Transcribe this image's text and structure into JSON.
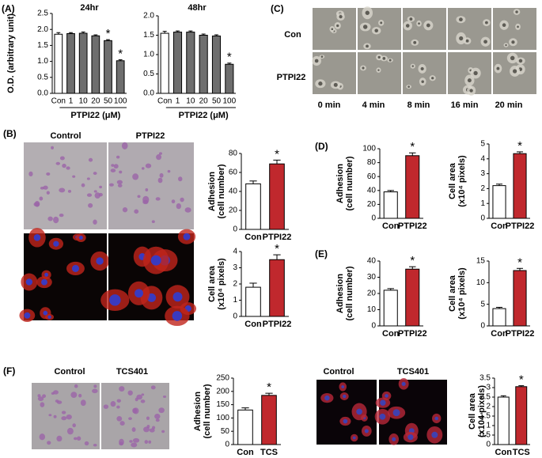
{
  "panel_labels": [
    "(A)",
    "(B)",
    "(C)",
    "(D)",
    "(E)",
    "(F)"
  ],
  "images": {
    "C": {
      "rows": [
        "Con",
        "PTPI22"
      ],
      "times": [
        "0 min",
        "4 min",
        "8 min",
        "16 min",
        "20 min"
      ]
    },
    "B": [
      "Control",
      "PTPI22"
    ],
    "F_left": [
      "Control",
      "TCS401"
    ],
    "F_right": [
      "Control",
      "TCS401"
    ]
  },
  "chart_data": [
    {
      "type": "bar",
      "title": "24hr",
      "ylabel": [
        "O.D. (arbitrary unit)"
      ],
      "xlabel": "PTPI22 (μM)",
      "categories": [
        "Con",
        "1",
        "10",
        "20",
        "50",
        "100"
      ],
      "values": [
        1.85,
        1.87,
        1.88,
        1.8,
        1.65,
        1.02
      ],
      "errors": [
        0.05,
        0.03,
        0.04,
        0.03,
        0.03,
        0.03
      ],
      "colors": [
        "#ffffff",
        "#6e6e6e",
        "#6e6e6e",
        "#6e6e6e",
        "#6e6e6e",
        "#6e6e6e"
      ],
      "significance": [
        null,
        null,
        null,
        null,
        "*",
        "*"
      ],
      "ylim": [
        0,
        2.5
      ],
      "yticks": [
        {
          "value": 0,
          "label": "0.0"
        },
        0.5,
        {
          "value": 1,
          "label": "1.0"
        },
        1.5,
        {
          "value": 2,
          "label": "2.0"
        },
        2.5
      ]
    },
    {
      "type": "bar",
      "title": "48hr",
      "xlabel": "PTPI22 (μM)",
      "categories": [
        "Con",
        "1",
        "10",
        "20",
        "50",
        "100"
      ],
      "values": [
        1.55,
        1.58,
        1.58,
        1.5,
        1.48,
        0.75
      ],
      "errors": [
        0.05,
        0.03,
        0.03,
        0.03,
        0.03,
        0.03
      ],
      "colors": [
        "#ffffff",
        "#6e6e6e",
        "#6e6e6e",
        "#6e6e6e",
        "#6e6e6e",
        "#6e6e6e"
      ],
      "significance": [
        null,
        null,
        null,
        null,
        null,
        "*"
      ],
      "ylim": [
        0,
        2
      ],
      "yticks": [
        {
          "value": 0,
          "label": "0.0"
        },
        0.5,
        {
          "value": 1,
          "label": "1.0"
        },
        1.5,
        {
          "value": 2,
          "label": "2.0"
        }
      ]
    },
    {
      "type": "bar",
      "ylabel": [
        "Adhesion",
        "(cell number)"
      ],
      "categories": [
        "Con",
        "PTPI22"
      ],
      "values": [
        48,
        69
      ],
      "errors": [
        3,
        4
      ],
      "colors": [
        "#ffffff",
        "#c0282d"
      ],
      "significance": [
        null,
        "*"
      ],
      "ylim": [
        0,
        80
      ],
      "yticks": [
        0,
        20,
        40,
        60,
        80
      ]
    },
    {
      "type": "bar",
      "ylabel": [
        "Cell area",
        "(x10⁴ pixels)"
      ],
      "categories": [
        "Con",
        "PTPI22"
      ],
      "values": [
        1.8,
        3.5
      ],
      "errors": [
        0.25,
        0.3
      ],
      "colors": [
        "#ffffff",
        "#c0282d"
      ],
      "significance": [
        null,
        "*"
      ],
      "ylim": [
        0,
        4
      ],
      "yticks": [
        0,
        1,
        2,
        3,
        4
      ]
    },
    {
      "type": "bar",
      "ylabel": [
        "Adhesion",
        "(cell number)"
      ],
      "categories": [
        "Con",
        "PTPI22"
      ],
      "values": [
        38,
        90
      ],
      "errors": [
        2,
        4
      ],
      "colors": [
        "#ffffff",
        "#c0282d"
      ],
      "significance": [
        null,
        "*"
      ],
      "ylim": [
        0,
        100
      ],
      "yticks": [
        0,
        20,
        40,
        60,
        80,
        100
      ]
    },
    {
      "type": "bar",
      "ylabel": [
        "Cell area",
        "(x10⁴ pixels)"
      ],
      "categories": [
        "Con",
        "PTPI22"
      ],
      "values": [
        2.2,
        4.35
      ],
      "errors": [
        0.1,
        0.12
      ],
      "colors": [
        "#ffffff",
        "#c0282d"
      ],
      "significance": [
        null,
        "*"
      ],
      "ylim": [
        0,
        5
      ],
      "yticks": [
        0,
        1,
        2,
        3,
        4,
        5
      ]
    },
    {
      "type": "bar",
      "ylabel": [
        "Adhesion",
        "(cell number)"
      ],
      "categories": [
        "Con",
        "PTPI22"
      ],
      "values": [
        22,
        35
      ],
      "errors": [
        1,
        1.5
      ],
      "colors": [
        "#ffffff",
        "#c0282d"
      ],
      "significance": [
        null,
        "*"
      ],
      "ylim": [
        0,
        40
      ],
      "yticks": [
        0,
        10,
        20,
        30,
        40
      ]
    },
    {
      "type": "bar",
      "ylabel": [
        "Cell area",
        "(x10⁴ pixels)"
      ],
      "categories": [
        "Con",
        "PTPI22"
      ],
      "values": [
        4,
        12.8
      ],
      "errors": [
        0.3,
        0.5
      ],
      "colors": [
        "#ffffff",
        "#c0282d"
      ],
      "significance": [
        null,
        "*"
      ],
      "ylim": [
        0,
        15
      ],
      "yticks": [
        0,
        5,
        10,
        15
      ]
    },
    {
      "type": "bar",
      "ylabel": [
        "Adhesion",
        "(cell number)"
      ],
      "categories": [
        "Con",
        "TCS"
      ],
      "values": [
        130,
        185
      ],
      "errors": [
        8,
        8
      ],
      "colors": [
        "#ffffff",
        "#c0282d"
      ],
      "significance": [
        null,
        "*"
      ],
      "ylim": [
        0,
        250
      ],
      "yticks": [
        0,
        50,
        100,
        150,
        200,
        250
      ]
    },
    {
      "type": "bar",
      "ylabel": [
        "Cell area",
        "(x104 pixels)"
      ],
      "categories": [
        "Con",
        "TCS"
      ],
      "values": [
        2.5,
        3.05
      ],
      "errors": [
        0.07,
        0.05
      ],
      "colors": [
        "#ffffff",
        "#c0282d"
      ],
      "significance": [
        null,
        "*"
      ],
      "ylim": [
        0,
        3.5
      ],
      "yticks": [
        0,
        0.5,
        1,
        1.5,
        2,
        2.5,
        3,
        3.5
      ]
    }
  ]
}
